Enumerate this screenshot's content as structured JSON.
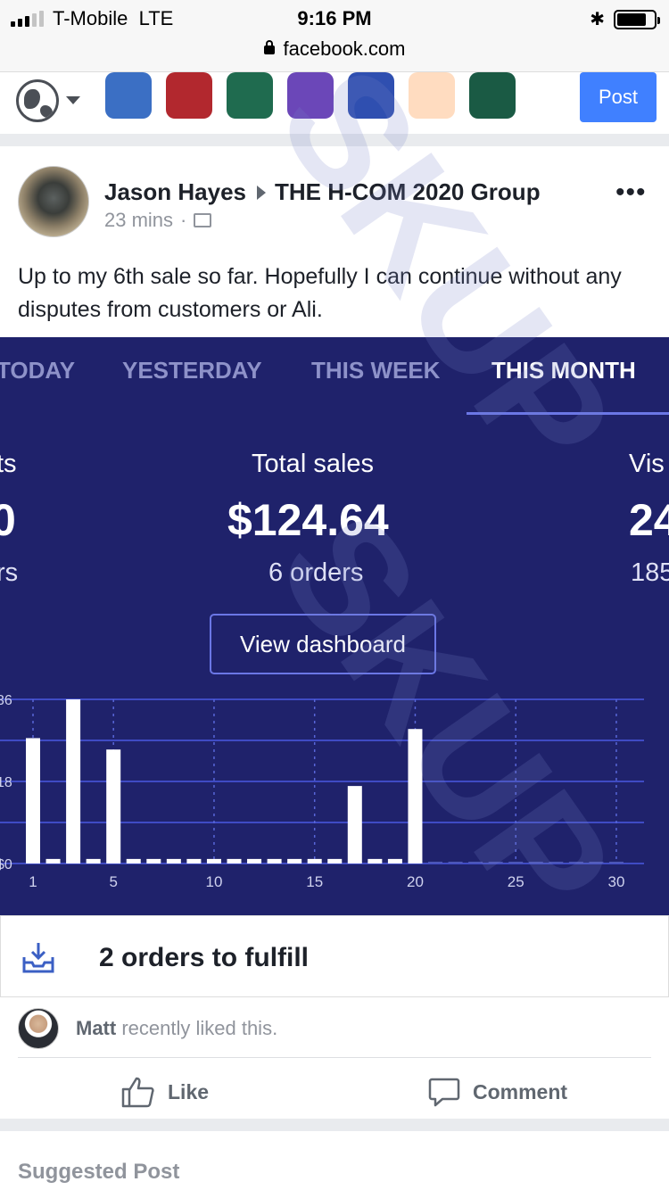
{
  "status_bar": {
    "carrier": "T-Mobile",
    "network": "LTE",
    "time": "9:16 PM",
    "url": "facebook.com"
  },
  "composer": {
    "post_label": "Post",
    "backgrounds": [
      "#3b6fc4",
      "#b2282e",
      "#1f6b4f",
      "#6b47b8",
      "#2f4fb0",
      "#ffdcc0",
      "#1a5a44"
    ]
  },
  "post": {
    "author": "Jason Hayes",
    "group": "THE H-COM 2020 Group",
    "time_ago": "23 mins",
    "text": "Up to my 6th sale so far. Hopefully I can continue without any disputes from customers or Ali.",
    "more_icon": "•••"
  },
  "dashboard": {
    "tabs": [
      "TODAY",
      "YESTERDAY",
      "THIS WEEK",
      "THIS MONTH"
    ],
    "active_tab": "THIS MONTH",
    "left_cut": {
      "label": "ts",
      "value": "0",
      "sub": "rs"
    },
    "total_sales_label": "Total sales",
    "total_sales_value": "$124.64",
    "orders": "6 orders",
    "right_cut": {
      "label": "Vis",
      "value": "24",
      "sub": "185"
    },
    "view_dashboard": "View dashboard"
  },
  "chart_data": {
    "type": "bar",
    "x": [
      1,
      2,
      3,
      4,
      5,
      6,
      7,
      8,
      9,
      10,
      11,
      12,
      13,
      14,
      15,
      16,
      17,
      18,
      19,
      20,
      21,
      22,
      23,
      24,
      25,
      26,
      27,
      28,
      29,
      30
    ],
    "values": [
      27.5,
      1,
      36,
      1,
      25,
      1,
      1,
      1,
      1,
      1,
      1,
      1,
      1,
      1,
      1,
      1,
      17,
      1,
      1,
      29.5,
      0,
      0,
      0,
      0,
      0,
      0,
      0,
      0,
      0,
      0
    ],
    "y_tick_labels": [
      "$0",
      "18",
      "36"
    ],
    "x_tick_labels": [
      "1",
      "5",
      "10",
      "15",
      "20",
      "25",
      "30"
    ],
    "ylim": [
      0,
      36
    ]
  },
  "fulfill": {
    "text": "2 orders to fulfill"
  },
  "liked": {
    "name": "Matt",
    "rest": " recently liked this."
  },
  "actions": {
    "like": "Like",
    "comment": "Comment"
  },
  "suggested": "Suggested Post",
  "watermark": "SKUP"
}
